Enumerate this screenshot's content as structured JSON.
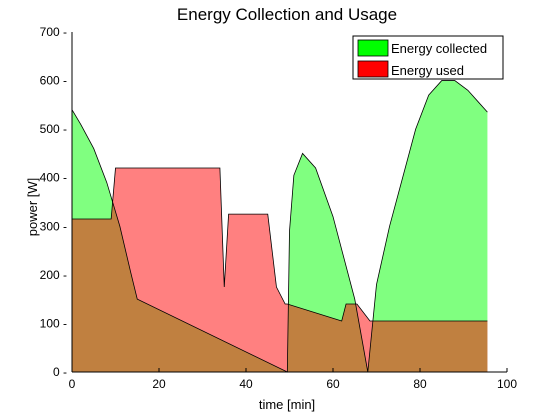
{
  "chart_data": {
    "type": "area",
    "title": "Energy Collection and Usage",
    "xlabel": "time [min]",
    "ylabel": "power [W]",
    "xlim": [
      0,
      100
    ],
    "ylim": [
      0,
      700
    ],
    "xticks": [
      0,
      20,
      40,
      60,
      80,
      100
    ],
    "yticks": [
      0,
      100,
      200,
      300,
      400,
      500,
      600,
      700
    ],
    "xtick_labels": [
      "0",
      "20",
      "40",
      "60",
      "80",
      "100"
    ],
    "ytick_labels": [
      "0 -",
      "100 -",
      "200 -",
      "300 -",
      "400 -",
      "500 -",
      "600 -",
      "700 -"
    ],
    "grid": false,
    "legend_position": "top-right",
    "series": [
      {
        "name": "Energy collected",
        "color": "#00ff00",
        "x": [
          0,
          2,
          5,
          8,
          11,
          13.5,
          15,
          49.5,
          50,
          51,
          53,
          56,
          60,
          65,
          68,
          70,
          73,
          76,
          79,
          82,
          85,
          88,
          91,
          93.5,
          95.5
        ],
        "values": [
          540,
          510,
          460,
          390,
          300,
          205,
          150,
          0,
          290,
          405,
          450,
          420,
          320,
          150,
          0,
          180,
          300,
          400,
          500,
          570,
          600,
          600,
          580,
          555,
          535
        ]
      },
      {
        "name": "Energy used",
        "color": "#ff0000",
        "x": [
          0,
          9,
          10,
          34,
          35,
          36,
          45,
          47,
          49,
          49.5,
          62,
          63,
          65.5,
          68.5,
          95.5
        ],
        "values": [
          315,
          315,
          420,
          420,
          175,
          325,
          325,
          175,
          140,
          140,
          105,
          140,
          140,
          105,
          105
        ]
      }
    ],
    "overlap_color": "#c08040"
  }
}
